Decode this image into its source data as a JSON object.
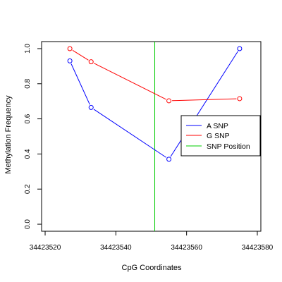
{
  "chart_data": {
    "type": "line",
    "title": "",
    "xlabel": "CpG Coordinates",
    "ylabel": "Methylation Frequency",
    "xlim": [
      34423519,
      34423581
    ],
    "ylim": [
      -0.04,
      1.04
    ],
    "x_ticks": [
      34423520,
      34423540,
      34423560,
      34423580
    ],
    "x_tick_labels": [
      "34423520",
      "34423540",
      "34423560",
      "34423580"
    ],
    "y_ticks": [
      0.0,
      0.2,
      0.4,
      0.6,
      0.8,
      1.0
    ],
    "y_tick_labels": [
      "0.0",
      "0.2",
      "0.4",
      "0.6",
      "0.8",
      "1.0"
    ],
    "grid": false,
    "legend_position": "right",
    "series": [
      {
        "name": "A SNP",
        "color": "#0000ff",
        "x": [
          34423527,
          34423533,
          34423555,
          34423575
        ],
        "y": [
          0.93,
          0.665,
          0.37,
          1.0
        ]
      },
      {
        "name": "G SNP",
        "color": "#ff0000",
        "x": [
          34423527,
          34423533,
          34423555,
          34423575
        ],
        "y": [
          1.0,
          0.925,
          0.703,
          0.715
        ]
      }
    ],
    "vline": {
      "name": "SNP Position",
      "color": "#00cc00",
      "x": 34423551
    }
  }
}
